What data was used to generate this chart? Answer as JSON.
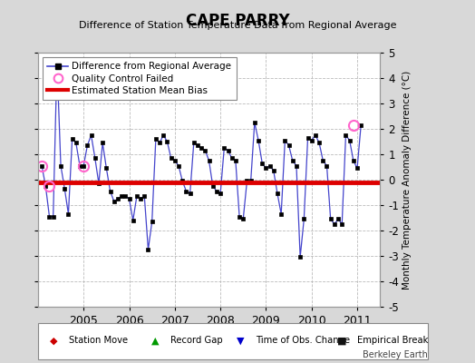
{
  "title": "CAPE PARRY",
  "subtitle": "Difference of Station Temperature Data from Regional Average",
  "ylabel_right": "Monthly Temperature Anomaly Difference (°C)",
  "watermark": "Berkeley Earth",
  "xlim": [
    2004.0,
    2011.5
  ],
  "ylim": [
    -5,
    5
  ],
  "yticks": [
    -5,
    -4,
    -3,
    -2,
    -1,
    0,
    1,
    2,
    3,
    4,
    5
  ],
  "xticks": [
    2005,
    2006,
    2007,
    2008,
    2009,
    2010,
    2011
  ],
  "bias_value": -0.1,
  "line_color": "#4444cc",
  "marker_color": "#000000",
  "bias_color": "#dd0000",
  "bg_color": "#d8d8d8",
  "plot_bg_color": "#ffffff",
  "qc_color": "#ff66cc",
  "time_series": [
    0.55,
    -0.25,
    -1.45,
    -1.45,
    4.65,
    0.55,
    -0.35,
    -1.35,
    1.6,
    1.45,
    0.55,
    0.55,
    1.35,
    1.75,
    0.85,
    -0.15,
    1.45,
    0.45,
    -0.45,
    -0.85,
    -0.75,
    -0.65,
    -0.65,
    -0.75,
    -1.6,
    -0.65,
    -0.75,
    -0.65,
    -2.75,
    -1.65,
    1.6,
    1.45,
    1.75,
    1.5,
    0.85,
    0.75,
    0.55,
    -0.05,
    -0.45,
    -0.55,
    1.45,
    1.35,
    1.25,
    1.15,
    0.75,
    -0.25,
    -0.45,
    -0.55,
    1.25,
    1.15,
    0.85,
    0.75,
    -1.45,
    -1.55,
    -0.05,
    -0.05,
    2.25,
    1.55,
    0.65,
    0.45,
    0.55,
    0.35,
    -0.55,
    -1.35,
    1.55,
    1.35,
    0.75,
    0.55,
    -3.05,
    -1.55,
    1.65,
    1.55,
    1.75,
    1.45,
    0.75,
    0.55,
    -1.55,
    -1.75,
    -1.55,
    -1.75,
    1.75,
    1.55,
    0.75,
    0.45,
    2.15
  ],
  "start_decimal_year": 2004.083,
  "qc_pts": [
    [
      2004.083,
      0.55
    ],
    [
      2004.25,
      -0.25
    ],
    [
      2005.0,
      0.55
    ],
    [
      2010.917,
      2.15
    ]
  ]
}
